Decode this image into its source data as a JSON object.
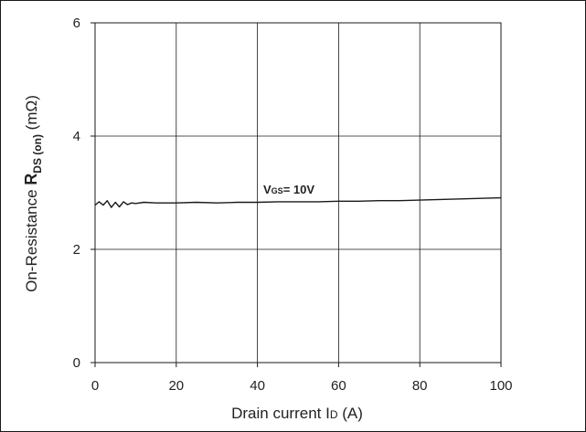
{
  "chart_data": {
    "type": "line",
    "xlabel": {
      "text": "Drain current I",
      "sub": "D",
      "unit": " (A)"
    },
    "ylabel": {
      "prefix": "On-Resistance ",
      "symbol": "R",
      "sub": "DS (on)",
      "unit": " (mΩ)"
    },
    "xlim": [
      0,
      100
    ],
    "ylim": [
      0,
      6
    ],
    "x_ticks": [
      0,
      20,
      40,
      60,
      80,
      100
    ],
    "y_ticks": [
      0,
      2,
      4,
      6
    ],
    "grid": true,
    "line_color": "#1a1a1a",
    "series": [
      {
        "label": {
          "symbol": "V",
          "sub": "GS",
          "text": "= 10V"
        },
        "x": [
          0,
          1,
          2,
          3,
          4,
          5,
          6,
          7,
          8,
          9,
          10,
          12,
          15,
          20,
          25,
          30,
          35,
          40,
          45,
          50,
          55,
          60,
          65,
          70,
          75,
          80,
          85,
          90,
          95,
          100
        ],
        "y": [
          2.78,
          2.84,
          2.78,
          2.86,
          2.74,
          2.83,
          2.75,
          2.84,
          2.79,
          2.82,
          2.81,
          2.83,
          2.82,
          2.82,
          2.83,
          2.82,
          2.83,
          2.83,
          2.84,
          2.84,
          2.84,
          2.85,
          2.85,
          2.86,
          2.86,
          2.87,
          2.88,
          2.89,
          2.9,
          2.91
        ]
      }
    ]
  }
}
